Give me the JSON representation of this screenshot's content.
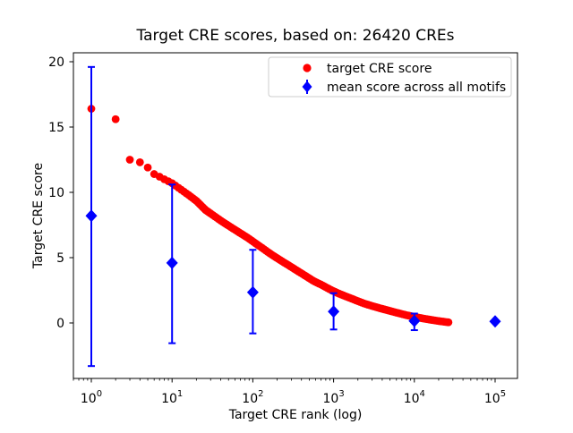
{
  "figure": {
    "title": "Target CRE scores, based on: 26420 CREs",
    "xlabel": "Target CRE rank (log)",
    "ylabel": "Target CRE score",
    "background_color": "#ffffff",
    "axis_color": "#000000"
  },
  "legend": {
    "border_color": "#cccccc",
    "items": [
      {
        "label": "target CRE score",
        "marker": "red-circle",
        "color": "#ff0000"
      },
      {
        "label": "mean score across all motifs",
        "marker": "blue-diamond-errorbar",
        "color": "#0000ff"
      }
    ]
  },
  "chart_data": {
    "type": "scatter",
    "title": "Target CRE scores, based on: 26420 CREs",
    "xlabel": "Target CRE rank (log)",
    "ylabel": "Target CRE score",
    "x_scale": "log",
    "xlim": [
      0.6,
      190000
    ],
    "ylim": [
      -4.3,
      20.7
    ],
    "x_tick_base": "10",
    "x_tick_exponents": [
      "0",
      "1",
      "2",
      "3",
      "4",
      "5"
    ],
    "y_ticks": [
      0,
      5,
      10,
      15,
      20
    ],
    "n_cres": 26420,
    "grid": false,
    "legend_position": "upper center-right inside",
    "series": [
      {
        "name": "target CRE score",
        "marker": "circle",
        "color": "#ff0000",
        "points_rank_score": [
          [
            1,
            16.4
          ],
          [
            2,
            15.6
          ],
          [
            3,
            12.5
          ],
          [
            4,
            12.3
          ],
          [
            5,
            11.9
          ],
          [
            6,
            11.4
          ],
          [
            7,
            11.2
          ],
          [
            8,
            11.0
          ],
          [
            9,
            10.85
          ],
          [
            10,
            10.7
          ],
          [
            13,
            10.2
          ],
          [
            16,
            9.8
          ],
          [
            20,
            9.35
          ],
          [
            26,
            8.65
          ],
          [
            33,
            8.2
          ],
          [
            42,
            7.75
          ],
          [
            53,
            7.35
          ],
          [
            67,
            6.95
          ],
          [
            85,
            6.55
          ],
          [
            108,
            6.1
          ],
          [
            137,
            5.65
          ],
          [
            174,
            5.2
          ],
          [
            220,
            4.8
          ],
          [
            280,
            4.4
          ],
          [
            355,
            4.0
          ],
          [
            450,
            3.6
          ],
          [
            570,
            3.2
          ],
          [
            720,
            2.9
          ],
          [
            915,
            2.55
          ],
          [
            1160,
            2.25
          ],
          [
            1470,
            2.0
          ],
          [
            1860,
            1.75
          ],
          [
            2360,
            1.5
          ],
          [
            3000,
            1.3
          ],
          [
            3800,
            1.12
          ],
          [
            4800,
            0.95
          ],
          [
            6100,
            0.78
          ],
          [
            7700,
            0.62
          ],
          [
            9800,
            0.48
          ],
          [
            12400,
            0.36
          ],
          [
            15700,
            0.25
          ],
          [
            19900,
            0.15
          ],
          [
            26420,
            0.05
          ]
        ]
      },
      {
        "name": "mean score across all motifs",
        "marker": "diamond",
        "color": "#0000ff",
        "points": [
          {
            "rank": 1,
            "mean": 8.2,
            "lo": -3.3,
            "hi": 19.6
          },
          {
            "rank": 10,
            "mean": 4.6,
            "lo": -1.55,
            "hi": 10.6
          },
          {
            "rank": 100,
            "mean": 2.35,
            "lo": -0.8,
            "hi": 5.6
          },
          {
            "rank": 1000,
            "mean": 0.87,
            "lo": -0.5,
            "hi": 2.28
          },
          {
            "rank": 10000,
            "mean": 0.15,
            "lo": -0.55,
            "hi": 0.72
          },
          {
            "rank": 100000,
            "mean": 0.12,
            "lo": 0.12,
            "hi": 0.12
          }
        ]
      }
    ]
  }
}
